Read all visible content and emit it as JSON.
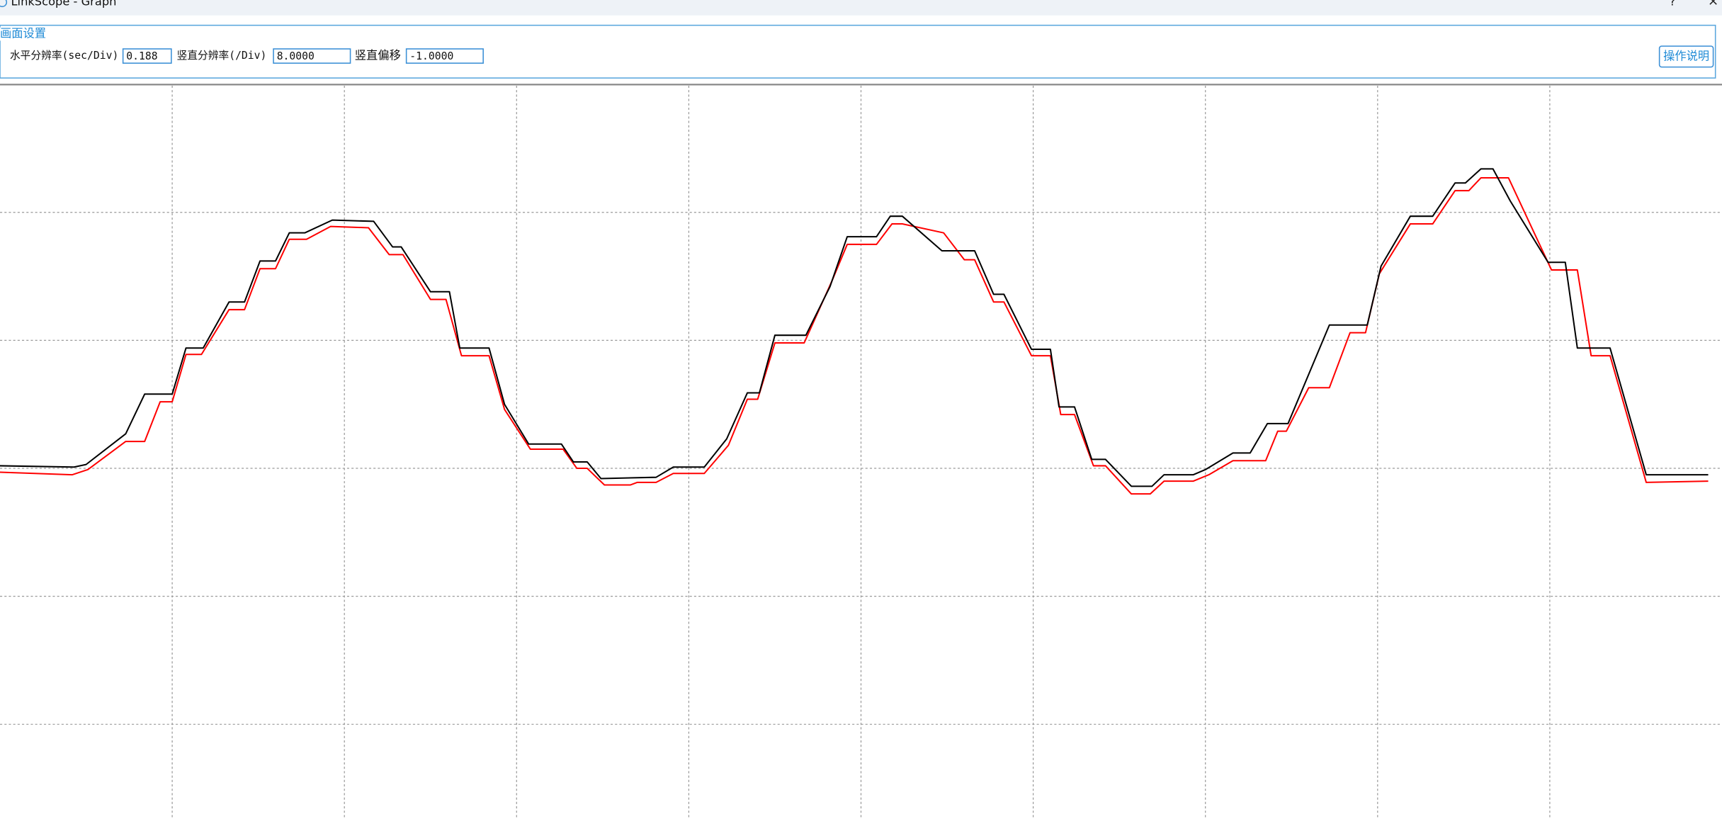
{
  "window": {
    "title": "LinkScope - Graph",
    "help": "?"
  },
  "settings": {
    "group": "画面设置",
    "h_res_label": "水平分辨率(sec/Div)",
    "h_res_value": "0.188",
    "v_res_label": "竖直分辨率(/Div)",
    "v_res_value": "8.0000",
    "v_offset_label": "竖直偏移",
    "v_offset_value": "-1.0000",
    "help_button": "操作说明"
  },
  "chart_data": {
    "type": "line",
    "grid": true,
    "xlim": [
      0,
      10
    ],
    "ylim": [
      -2.74,
      2.99
    ],
    "xgrid": [
      1,
      2,
      3,
      4,
      5,
      6,
      7,
      8,
      9
    ],
    "ygrid": [
      -2,
      -1,
      0,
      1,
      2
    ],
    "series": [
      {
        "color": "#000000",
        "x": [
          0,
          0.43,
          0.5,
          0.73,
          0.84,
          1.0,
          1.08,
          1.18,
          1.33,
          1.42,
          1.51,
          1.6,
          1.68,
          1.77,
          1.93,
          2.17,
          2.28,
          2.33,
          2.5,
          2.61,
          2.67,
          2.84,
          2.93,
          3.07,
          3.26,
          3.33,
          3.41,
          3.49,
          3.81,
          3.91,
          4.09,
          4.22,
          4.34,
          4.41,
          4.5,
          4.68,
          4.82,
          4.92,
          5.09,
          5.17,
          5.24,
          5.47,
          5.66,
          5.77,
          5.83,
          5.99,
          6.1,
          6.15,
          6.24,
          6.34,
          6.42,
          6.57,
          6.69,
          6.76,
          6.93,
          7.0,
          7.16,
          7.26,
          7.36,
          7.48,
          7.72,
          7.94,
          8.02,
          8.19,
          8.32,
          8.45,
          8.51,
          8.6,
          8.67,
          8.77,
          8.99,
          9.09,
          9.16,
          9.35,
          9.56,
          9.92
        ],
        "values": [
          0.02,
          0.01,
          0.03,
          0.27,
          0.58,
          0.58,
          0.94,
          0.94,
          1.3,
          1.3,
          1.62,
          1.62,
          1.84,
          1.84,
          1.94,
          1.93,
          1.73,
          1.73,
          1.38,
          1.38,
          0.94,
          0.94,
          0.5,
          0.19,
          0.19,
          0.05,
          0.05,
          -0.08,
          -0.07,
          0.01,
          0.01,
          0.23,
          0.59,
          0.59,
          1.04,
          1.04,
          1.42,
          1.81,
          1.81,
          1.97,
          1.97,
          1.7,
          1.7,
          1.36,
          1.36,
          0.93,
          0.93,
          0.48,
          0.48,
          0.07,
          0.07,
          -0.14,
          -0.14,
          -0.05,
          -0.05,
          -0.01,
          0.12,
          0.12,
          0.35,
          0.35,
          1.12,
          1.12,
          1.58,
          1.97,
          1.97,
          2.23,
          2.23,
          2.34,
          2.34,
          2.09,
          1.61,
          1.61,
          0.94,
          0.94,
          -0.05,
          -0.05
        ]
      },
      {
        "color": "#ff0000",
        "x": [
          0,
          0.42,
          0.51,
          0.73,
          0.84,
          0.93,
          1.0,
          1.08,
          1.17,
          1.33,
          1.42,
          1.51,
          1.6,
          1.68,
          1.78,
          1.92,
          2.14,
          2.26,
          2.34,
          2.5,
          2.59,
          2.68,
          2.84,
          2.93,
          3.08,
          3.27,
          3.35,
          3.41,
          3.51,
          3.66,
          3.7,
          3.81,
          3.91,
          4.09,
          4.23,
          4.34,
          4.4,
          4.5,
          4.67,
          4.83,
          4.92,
          5.09,
          5.18,
          5.24,
          5.48,
          5.6,
          5.66,
          5.77,
          5.83,
          5.99,
          6.1,
          6.16,
          6.24,
          6.35,
          6.42,
          6.57,
          6.68,
          6.76,
          6.93,
          7.02,
          7.16,
          7.35,
          7.42,
          7.47,
          7.6,
          7.72,
          7.84,
          7.93,
          8.01,
          8.19,
          8.32,
          8.45,
          8.53,
          8.6,
          8.76,
          9.01,
          9.16,
          9.24,
          9.35,
          9.56,
          9.92
        ],
        "values": [
          -0.03,
          -0.05,
          -0.01,
          0.21,
          0.21,
          0.52,
          0.52,
          0.89,
          0.89,
          1.24,
          1.24,
          1.56,
          1.56,
          1.79,
          1.79,
          1.89,
          1.88,
          1.67,
          1.67,
          1.32,
          1.32,
          0.88,
          0.88,
          0.46,
          0.15,
          0.15,
          0,
          0,
          -0.13,
          -0.13,
          -0.11,
          -0.11,
          -0.04,
          -0.04,
          0.18,
          0.54,
          0.54,
          0.98,
          0.98,
          1.46,
          1.75,
          1.75,
          1.91,
          1.91,
          1.84,
          1.63,
          1.63,
          1.3,
          1.3,
          0.88,
          0.88,
          0.42,
          0.42,
          0.02,
          0.02,
          -0.2,
          -0.2,
          -0.1,
          -0.1,
          -0.05,
          0.06,
          0.06,
          0.29,
          0.29,
          0.63,
          0.63,
          1.06,
          1.06,
          1.52,
          1.91,
          1.91,
          2.17,
          2.17,
          2.27,
          2.27,
          1.55,
          1.55,
          0.88,
          0.88,
          -0.11,
          -0.1
        ]
      }
    ]
  }
}
